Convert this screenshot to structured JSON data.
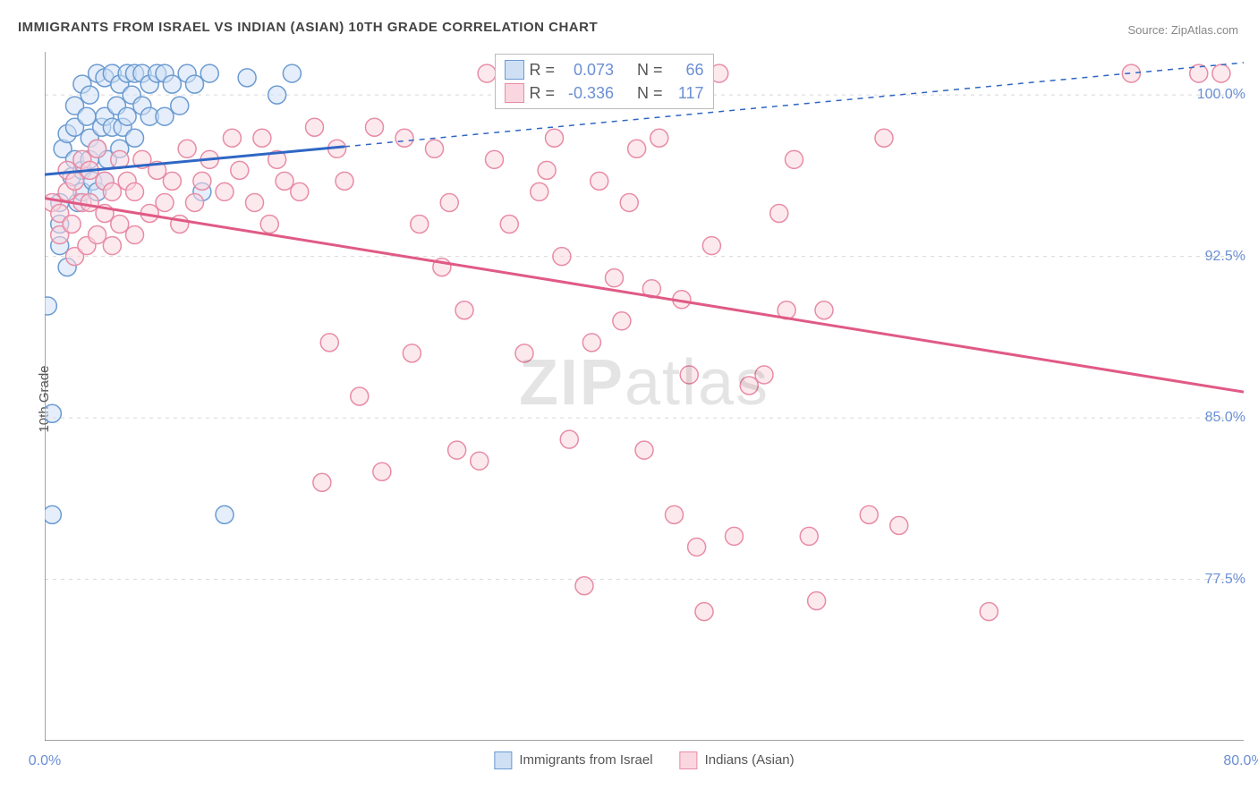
{
  "title": "IMMIGRANTS FROM ISRAEL VS INDIAN (ASIAN) 10TH GRADE CORRELATION CHART",
  "source": "Source: ZipAtlas.com",
  "ylabel": "10th Grade",
  "watermark_bold": "ZIP",
  "watermark_rest": "atlas",
  "chart": {
    "type": "scatter",
    "xlim": [
      0,
      80
    ],
    "ylim": [
      70,
      102
    ],
    "y_ticks": [
      77.5,
      85.0,
      92.5,
      100.0
    ],
    "y_tick_labels": [
      "77.5%",
      "85.0%",
      "92.5%",
      "100.0%"
    ],
    "x_ticks": [
      0,
      80
    ],
    "x_tick_labels": [
      "0.0%",
      "80.0%"
    ],
    "x_minor_ticks": [
      10,
      20,
      30,
      40,
      50,
      60,
      70
    ],
    "background_color": "#ffffff",
    "grid_color": "#d8d8d8",
    "axis_color": "#666666",
    "marker_radius": 10,
    "marker_stroke_width": 1.5,
    "trend_line_width": 3,
    "series": [
      {
        "name": "Immigrants from Israel",
        "legend_label": "Immigrants from Israel",
        "fill": "#cfe0f5",
        "stroke": "#6b9bd1",
        "line_color": "#2f66c4",
        "R": "0.073",
        "N": "66",
        "trend": {
          "x1": 0,
          "y1": 96.3,
          "x2": 80,
          "y2": 101.5,
          "solid_until_x": 20
        },
        "points": [
          [
            0.2,
            90.2
          ],
          [
            0.5,
            85.2
          ],
          [
            0.5,
            80.5
          ],
          [
            1.0,
            93.0
          ],
          [
            1.0,
            94.0
          ],
          [
            1.0,
            95.0
          ],
          [
            1.2,
            97.5
          ],
          [
            1.5,
            98.2
          ],
          [
            1.5,
            92.0
          ],
          [
            1.8,
            96.2
          ],
          [
            2.0,
            97.0
          ],
          [
            2.0,
            98.5
          ],
          [
            2.0,
            99.5
          ],
          [
            2.2,
            95.0
          ],
          [
            2.5,
            96.5
          ],
          [
            2.5,
            100.5
          ],
          [
            2.5,
            95.5
          ],
          [
            2.8,
            99.0
          ],
          [
            3.0,
            98.0
          ],
          [
            3.0,
            97.0
          ],
          [
            3.0,
            100.0
          ],
          [
            3.2,
            96.0
          ],
          [
            3.5,
            101.0
          ],
          [
            3.5,
            95.5
          ],
          [
            3.5,
            97.5
          ],
          [
            3.8,
            98.5
          ],
          [
            4.0,
            99.0
          ],
          [
            4.0,
            100.8
          ],
          [
            4.0,
            96.0
          ],
          [
            4.2,
            97.0
          ],
          [
            4.5,
            101.0
          ],
          [
            4.5,
            98.5
          ],
          [
            4.8,
            99.5
          ],
          [
            5.0,
            100.5
          ],
          [
            5.0,
            97.5
          ],
          [
            5.2,
            98.5
          ],
          [
            5.5,
            101.0
          ],
          [
            5.5,
            99.0
          ],
          [
            5.8,
            100.0
          ],
          [
            6.0,
            101.0
          ],
          [
            6.0,
            98.0
          ],
          [
            6.5,
            99.5
          ],
          [
            6.5,
            101.0
          ],
          [
            7.0,
            100.5
          ],
          [
            7.0,
            99.0
          ],
          [
            7.5,
            101.0
          ],
          [
            8.0,
            101.0
          ],
          [
            8.0,
            99.0
          ],
          [
            8.5,
            100.5
          ],
          [
            9.0,
            99.5
          ],
          [
            9.5,
            101.0
          ],
          [
            10.0,
            100.5
          ],
          [
            10.5,
            95.5
          ],
          [
            11.0,
            101.0
          ],
          [
            12.0,
            80.5
          ],
          [
            13.5,
            100.8
          ],
          [
            15.5,
            100.0
          ],
          [
            16.5,
            101.0
          ]
        ]
      },
      {
        "name": "Indians (Asian)",
        "legend_label": "Indians (Asian)",
        "fill": "#fad7e0",
        "stroke": "#e88ca5",
        "line_color": "#e05a85",
        "R": "-0.336",
        "N": "117",
        "trend": {
          "x1": 0,
          "y1": 95.2,
          "x2": 80,
          "y2": 86.2,
          "solid_until_x": 80
        },
        "points": [
          [
            0.5,
            95.0
          ],
          [
            1.0,
            93.5
          ],
          [
            1.0,
            94.5
          ],
          [
            1.5,
            95.5
          ],
          [
            1.5,
            96.5
          ],
          [
            1.8,
            94.0
          ],
          [
            2.0,
            96.0
          ],
          [
            2.0,
            92.5
          ],
          [
            2.5,
            95.0
          ],
          [
            2.5,
            97.0
          ],
          [
            2.8,
            93.0
          ],
          [
            3.0,
            96.5
          ],
          [
            3.0,
            95.0
          ],
          [
            3.5,
            93.5
          ],
          [
            3.5,
            97.5
          ],
          [
            4.0,
            96.0
          ],
          [
            4.0,
            94.5
          ],
          [
            4.5,
            95.5
          ],
          [
            4.5,
            93.0
          ],
          [
            5.0,
            97.0
          ],
          [
            5.0,
            94.0
          ],
          [
            5.5,
            96.0
          ],
          [
            6.0,
            95.5
          ],
          [
            6.0,
            93.5
          ],
          [
            6.5,
            97.0
          ],
          [
            7.0,
            94.5
          ],
          [
            7.5,
            96.5
          ],
          [
            8.0,
            95.0
          ],
          [
            8.5,
            96.0
          ],
          [
            9.0,
            94.0
          ],
          [
            9.5,
            97.5
          ],
          [
            10.0,
            95.0
          ],
          [
            10.5,
            96.0
          ],
          [
            11.0,
            97.0
          ],
          [
            12.0,
            95.5
          ],
          [
            12.5,
            98.0
          ],
          [
            13.0,
            96.5
          ],
          [
            14.0,
            95.0
          ],
          [
            14.5,
            98.0
          ],
          [
            15.0,
            94.0
          ],
          [
            15.5,
            97.0
          ],
          [
            16.0,
            96.0
          ],
          [
            17.0,
            95.5
          ],
          [
            18.0,
            98.5
          ],
          [
            18.5,
            82.0
          ],
          [
            19.0,
            88.5
          ],
          [
            19.5,
            97.5
          ],
          [
            20.0,
            96.0
          ],
          [
            21.0,
            86.0
          ],
          [
            22.0,
            98.5
          ],
          [
            22.5,
            82.5
          ],
          [
            24.0,
            98.0
          ],
          [
            24.5,
            88.0
          ],
          [
            25.0,
            94.0
          ],
          [
            26.0,
            97.5
          ],
          [
            26.5,
            92.0
          ],
          [
            27.0,
            95.0
          ],
          [
            27.5,
            83.5
          ],
          [
            28.0,
            90.0
          ],
          [
            29.0,
            83.0
          ],
          [
            29.5,
            101.0
          ],
          [
            30.0,
            97.0
          ],
          [
            31.0,
            94.0
          ],
          [
            32.0,
            88.0
          ],
          [
            33.0,
            95.5
          ],
          [
            33.5,
            96.5
          ],
          [
            34.0,
            98.0
          ],
          [
            34.5,
            92.5
          ],
          [
            35.0,
            84.0
          ],
          [
            36.0,
            77.2
          ],
          [
            36.5,
            88.5
          ],
          [
            37.0,
            96.0
          ],
          [
            38.0,
            91.5
          ],
          [
            38.5,
            89.5
          ],
          [
            39.0,
            95.0
          ],
          [
            39.5,
            97.5
          ],
          [
            40.0,
            83.5
          ],
          [
            40.5,
            91.0
          ],
          [
            41.0,
            98.0
          ],
          [
            42.0,
            80.5
          ],
          [
            42.5,
            90.5
          ],
          [
            43.0,
            87.0
          ],
          [
            43.5,
            79.0
          ],
          [
            44.0,
            76.0
          ],
          [
            44.5,
            93.0
          ],
          [
            45.0,
            101.0
          ],
          [
            46.0,
            79.5
          ],
          [
            47.0,
            86.5
          ],
          [
            48.0,
            87.0
          ],
          [
            49.0,
            94.5
          ],
          [
            49.5,
            90.0
          ],
          [
            50.0,
            97.0
          ],
          [
            51.0,
            79.5
          ],
          [
            51.5,
            76.5
          ],
          [
            52.0,
            90.0
          ],
          [
            55.0,
            80.5
          ],
          [
            56.0,
            98.0
          ],
          [
            57.0,
            80.0
          ],
          [
            63.0,
            76.0
          ],
          [
            72.5,
            101.0
          ],
          [
            77.0,
            101.0
          ],
          [
            78.5,
            101.0
          ]
        ]
      }
    ]
  },
  "stat_box": {
    "label_R": "R =",
    "label_N": "N ="
  },
  "bottom_legend_items": [
    {
      "label": "Immigrants from Israel",
      "fill": "#cfe0f5",
      "stroke": "#6b9bd1"
    },
    {
      "label": "Indians (Asian)",
      "fill": "#fad7e0",
      "stroke": "#e88ca5"
    }
  ]
}
